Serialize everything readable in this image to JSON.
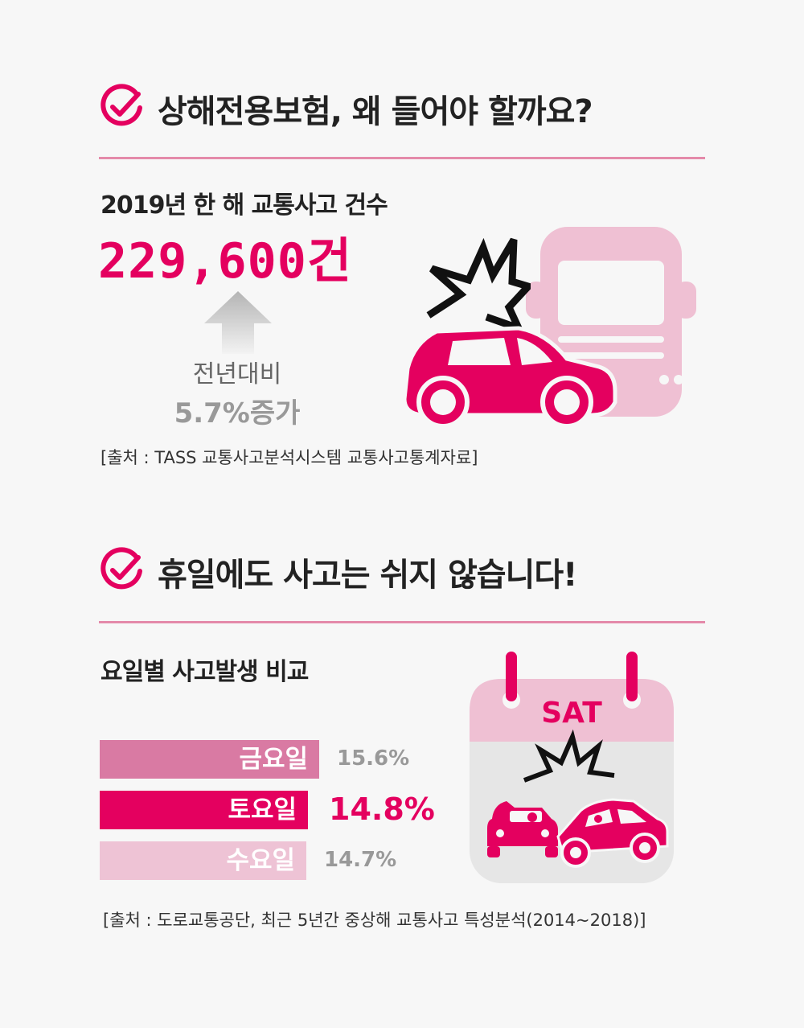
{
  "section1": {
    "title": "상해전용보험, 왜 들어야 할까요?",
    "subtitle": "2019년 한 해 교통사고 건수",
    "big_number": "229,600건",
    "compare_line1": "전년대비",
    "compare_line2": "5.7%증가",
    "source": "[출처 : TASS 교통사고분석시스템 교통사고통계자료]"
  },
  "section2": {
    "title": "휴일에도 사고는 쉬지 않습니다!",
    "subtitle": "요일별 사고발생 비교",
    "calendar_label": "SAT",
    "source": "[출처 : 도로교통공단, 최근 5년간 중상해 교통사고 특성분석(2014~2018)]"
  },
  "chart_data": {
    "type": "bar",
    "orientation": "horizontal",
    "title": "요일별 사고발생 비교",
    "unit": "%",
    "categories": [
      "금요일",
      "토요일",
      "수요일"
    ],
    "values": [
      15.6,
      14.8,
      14.7
    ],
    "value_labels": [
      "15.6%",
      "14.8%",
      "14.7%"
    ],
    "colors": [
      "#d97aa3",
      "#e4005f",
      "#eec3d5"
    ],
    "highlight_index": 1
  },
  "colors": {
    "accent": "#e4005f",
    "rule": "#e48aaa",
    "truck": "#efc0d3",
    "background": "#f7f7f7"
  },
  "icons": [
    "check-circle-icon",
    "up-arrow-icon",
    "car-crash-icon",
    "truck-icon",
    "calendar-icon"
  ]
}
